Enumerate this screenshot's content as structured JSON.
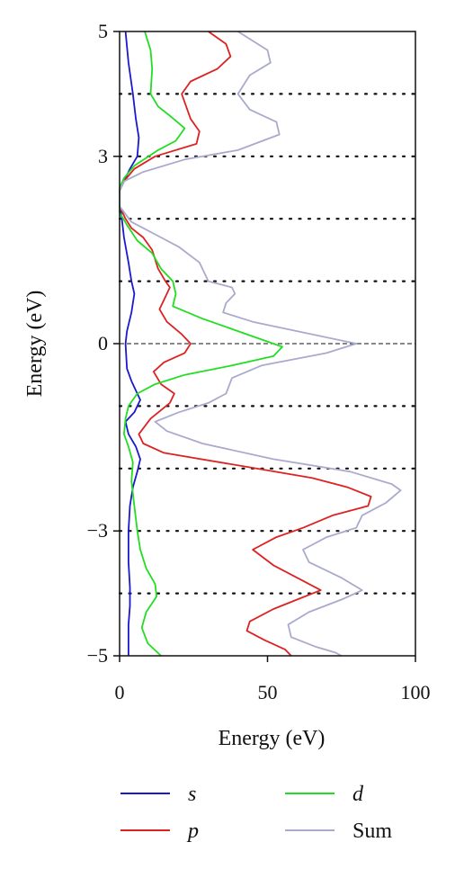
{
  "chart_data": {
    "type": "line",
    "orientation": "horizontal",
    "xlabel": "Energy (eV)",
    "ylabel": "Energy (eV)",
    "xlim": [
      0,
      100
    ],
    "ylim": [
      -5,
      5
    ],
    "xticks": [
      0,
      50,
      100
    ],
    "yticks": [
      -5,
      -3,
      0,
      3,
      5
    ],
    "ytick_labels": [
      "−5",
      "−3",
      "0",
      "3",
      "5"
    ],
    "gridlines_y": [
      -4,
      -3,
      -2,
      -1,
      1,
      2,
      3,
      4
    ],
    "fermi_level": 0,
    "legend_position": "bottom",
    "series": [
      {
        "name": "s",
        "italic": true,
        "color": "#1a1acc",
        "points": [
          [
            2.0,
            5.0
          ],
          [
            3.0,
            4.5
          ],
          [
            4.5,
            4.0
          ],
          [
            5.5,
            3.6
          ],
          [
            6.5,
            3.3
          ],
          [
            6.0,
            3.0
          ],
          [
            3.5,
            2.8
          ],
          [
            1.5,
            2.6
          ],
          [
            0.5,
            2.5
          ],
          [
            0.0,
            2.45
          ],
          [
            0.0,
            2.2
          ],
          [
            0.5,
            2.1
          ],
          [
            1.0,
            1.9
          ],
          [
            1.5,
            1.7
          ],
          [
            3.0,
            1.3
          ],
          [
            4.0,
            1.0
          ],
          [
            5.0,
            0.8
          ],
          [
            4.0,
            0.5
          ],
          [
            2.5,
            0.2
          ],
          [
            2.0,
            0.0
          ],
          [
            2.5,
            -0.4
          ],
          [
            4.0,
            -0.6
          ],
          [
            5.5,
            -0.75
          ],
          [
            7.0,
            -0.9
          ],
          [
            5.0,
            -1.1
          ],
          [
            2.0,
            -1.25
          ],
          [
            3.0,
            -1.45
          ],
          [
            5.5,
            -1.65
          ],
          [
            7.0,
            -1.85
          ],
          [
            6.0,
            -2.05
          ],
          [
            4.5,
            -2.3
          ],
          [
            3.5,
            -2.6
          ],
          [
            3.0,
            -3.0
          ],
          [
            3.0,
            -3.5
          ],
          [
            3.5,
            -3.9
          ],
          [
            3.5,
            -4.2
          ],
          [
            3.0,
            -4.5
          ],
          [
            3.0,
            -5.0
          ]
        ]
      },
      {
        "name": "p",
        "italic": true,
        "color": "#dd2222",
        "points": [
          [
            30.0,
            5.0
          ],
          [
            36.0,
            4.8
          ],
          [
            37.5,
            4.6
          ],
          [
            33.0,
            4.4
          ],
          [
            24.0,
            4.2
          ],
          [
            21.0,
            4.0
          ],
          [
            24.0,
            3.6
          ],
          [
            27.0,
            3.4
          ],
          [
            26.0,
            3.2
          ],
          [
            12.0,
            3.0
          ],
          [
            5.0,
            2.8
          ],
          [
            1.5,
            2.6
          ],
          [
            0.0,
            2.45
          ],
          [
            0.0,
            2.2
          ],
          [
            2.0,
            2.0
          ],
          [
            4.0,
            1.85
          ],
          [
            8.0,
            1.7
          ],
          [
            11.0,
            1.5
          ],
          [
            13.0,
            1.2
          ],
          [
            15.5,
            1.0
          ],
          [
            17.0,
            0.9
          ],
          [
            16.0,
            0.8
          ],
          [
            13.5,
            0.55
          ],
          [
            16.0,
            0.35
          ],
          [
            21.0,
            0.15
          ],
          [
            24.0,
            0.0
          ],
          [
            22.0,
            -0.15
          ],
          [
            15.0,
            -0.3
          ],
          [
            11.5,
            -0.45
          ],
          [
            14.0,
            -0.65
          ],
          [
            18.5,
            -0.8
          ],
          [
            17.0,
            -0.95
          ],
          [
            10.5,
            -1.2
          ],
          [
            6.5,
            -1.45
          ],
          [
            8.0,
            -1.6
          ],
          [
            15.0,
            -1.75
          ],
          [
            40.0,
            -1.95
          ],
          [
            65.0,
            -2.15
          ],
          [
            77.0,
            -2.3
          ],
          [
            85.0,
            -2.45
          ],
          [
            84.0,
            -2.6
          ],
          [
            72.0,
            -2.75
          ],
          [
            62.0,
            -2.95
          ],
          [
            53.0,
            -3.1
          ],
          [
            45.0,
            -3.3
          ],
          [
            52.0,
            -3.55
          ],
          [
            62.0,
            -3.8
          ],
          [
            68.0,
            -3.95
          ],
          [
            60.0,
            -4.1
          ],
          [
            52.0,
            -4.25
          ],
          [
            44.0,
            -4.45
          ],
          [
            43.0,
            -4.6
          ],
          [
            49.0,
            -4.75
          ],
          [
            56.0,
            -4.9
          ],
          [
            58.0,
            -5.0
          ]
        ]
      },
      {
        "name": "d",
        "italic": true,
        "color": "#22dd22",
        "points": [
          [
            8.5,
            5.0
          ],
          [
            10.5,
            4.7
          ],
          [
            11.0,
            4.4
          ],
          [
            10.5,
            4.0
          ],
          [
            13.0,
            3.8
          ],
          [
            17.0,
            3.65
          ],
          [
            22.0,
            3.45
          ],
          [
            19.0,
            3.25
          ],
          [
            13.0,
            3.1
          ],
          [
            5.0,
            2.85
          ],
          [
            1.5,
            2.65
          ],
          [
            0.0,
            2.5
          ],
          [
            0.0,
            2.1
          ],
          [
            2.5,
            1.9
          ],
          [
            6.0,
            1.65
          ],
          [
            11.0,
            1.45
          ],
          [
            14.0,
            1.2
          ],
          [
            18.0,
            1.0
          ],
          [
            19.0,
            0.8
          ],
          [
            18.0,
            0.6
          ],
          [
            28.0,
            0.4
          ],
          [
            43.0,
            0.15
          ],
          [
            55.0,
            -0.05
          ],
          [
            52.0,
            -0.2
          ],
          [
            38.0,
            -0.35
          ],
          [
            22.0,
            -0.5
          ],
          [
            12.0,
            -0.65
          ],
          [
            6.0,
            -0.8
          ],
          [
            3.0,
            -1.0
          ],
          [
            2.0,
            -1.2
          ],
          [
            1.5,
            -1.45
          ],
          [
            3.0,
            -1.65
          ],
          [
            4.5,
            -1.9
          ],
          [
            4.0,
            -2.2
          ],
          [
            5.0,
            -2.6
          ],
          [
            6.0,
            -3.0
          ],
          [
            7.0,
            -3.3
          ],
          [
            9.0,
            -3.6
          ],
          [
            12.0,
            -3.85
          ],
          [
            12.5,
            -4.05
          ],
          [
            9.0,
            -4.3
          ],
          [
            7.5,
            -4.55
          ],
          [
            9.5,
            -4.8
          ],
          [
            14.0,
            -5.0
          ]
        ]
      },
      {
        "name": "Sum",
        "italic": false,
        "color": "#aaaacc",
        "points": [
          [
            40.0,
            5.0
          ],
          [
            50.0,
            4.7
          ],
          [
            51.0,
            4.5
          ],
          [
            44.0,
            4.3
          ],
          [
            40.0,
            4.0
          ],
          [
            44.0,
            3.75
          ],
          [
            53.0,
            3.55
          ],
          [
            54.0,
            3.35
          ],
          [
            40.0,
            3.1
          ],
          [
            22.0,
            2.95
          ],
          [
            8.0,
            2.75
          ],
          [
            1.5,
            2.6
          ],
          [
            0.0,
            2.45
          ],
          [
            0.0,
            2.2
          ],
          [
            4.0,
            1.95
          ],
          [
            12.0,
            1.75
          ],
          [
            20.0,
            1.55
          ],
          [
            27.0,
            1.3
          ],
          [
            30.0,
            1.0
          ],
          [
            38.0,
            0.9
          ],
          [
            39.0,
            0.8
          ],
          [
            36.0,
            0.65
          ],
          [
            35.0,
            0.5
          ],
          [
            45.0,
            0.35
          ],
          [
            65.0,
            0.15
          ],
          [
            80.0,
            0.0
          ],
          [
            70.0,
            -0.15
          ],
          [
            48.0,
            -0.35
          ],
          [
            38.0,
            -0.55
          ],
          [
            36.0,
            -0.8
          ],
          [
            30.0,
            -0.95
          ],
          [
            20.0,
            -1.1
          ],
          [
            12.0,
            -1.25
          ],
          [
            16.0,
            -1.4
          ],
          [
            28.0,
            -1.6
          ],
          [
            52.0,
            -1.85
          ],
          [
            78.0,
            -2.05
          ],
          [
            92.0,
            -2.25
          ],
          [
            95.0,
            -2.35
          ],
          [
            90.0,
            -2.55
          ],
          [
            82.0,
            -2.75
          ],
          [
            80.0,
            -2.95
          ],
          [
            70.0,
            -3.1
          ],
          [
            62.0,
            -3.3
          ],
          [
            64.0,
            -3.5
          ],
          [
            75.0,
            -3.75
          ],
          [
            82.0,
            -3.95
          ],
          [
            75.0,
            -4.1
          ],
          [
            64.0,
            -4.3
          ],
          [
            57.0,
            -4.5
          ],
          [
            58.0,
            -4.7
          ],
          [
            66.0,
            -4.85
          ],
          [
            73.0,
            -4.95
          ],
          [
            75.0,
            -5.0
          ]
        ]
      }
    ]
  }
}
